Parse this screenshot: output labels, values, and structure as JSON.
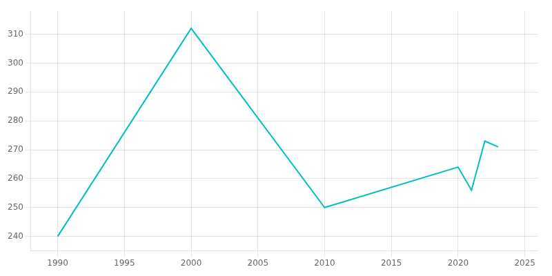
{
  "chart_data": {
    "type": "line",
    "x": [
      1990,
      2000,
      2010,
      2020,
      2021,
      2022,
      2023
    ],
    "values": [
      240,
      312,
      250,
      264,
      256,
      273,
      271
    ],
    "color": "#00c0c0",
    "xlim": [
      1988,
      2026
    ],
    "ylim": [
      235,
      318
    ],
    "xticks": [
      1990,
      1995,
      2000,
      2005,
      2010,
      2015,
      2020,
      2025
    ],
    "yticks": [
      240,
      250,
      260,
      270,
      280,
      290,
      300,
      310
    ],
    "grid": true
  }
}
